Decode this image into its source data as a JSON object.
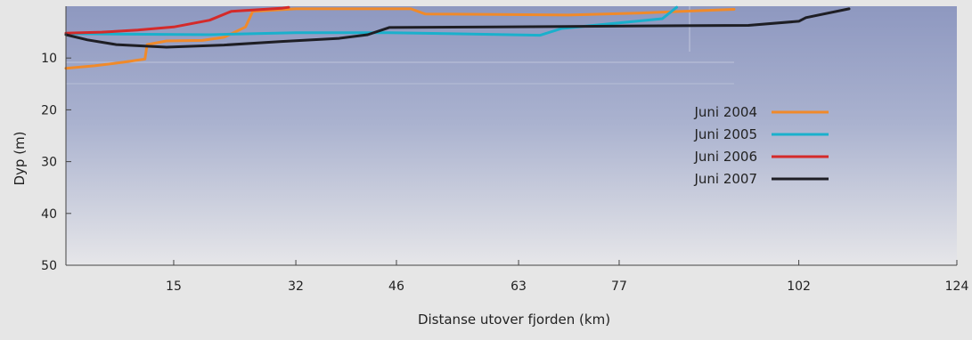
{
  "chart_data": {
    "type": "line",
    "xlabel": "Distanse utover fjorden (km)",
    "ylabel": "Dyp (m)",
    "x_ticks": [
      15,
      32,
      46,
      63,
      77,
      102,
      124
    ],
    "y_ticks": [
      10,
      20,
      30,
      40,
      50
    ],
    "xlim": [
      0,
      124
    ],
    "ylim": [
      0,
      50
    ],
    "y_inverted": true,
    "legend_position": "right-center",
    "background": "gradient blue-grey fading to light grey",
    "series": [
      {
        "name": "Juni 2004",
        "color": "#f08a2a",
        "x": [
          0,
          4,
          8,
          11,
          11.3,
          14,
          19,
          22,
          25,
          26,
          32,
          48,
          50,
          60,
          70,
          80,
          93
        ],
        "y": [
          12,
          11.5,
          10.8,
          10.2,
          7.4,
          6.7,
          6.6,
          6,
          4,
          1,
          0.5,
          0.5,
          1.5,
          1.6,
          1.7,
          1.3,
          0.6
        ]
      },
      {
        "name": "Juni 2005",
        "color": "#1ab0cc",
        "x": [
          0,
          20,
          32,
          45,
          66,
          69,
          83,
          85
        ],
        "y": [
          5.3,
          5.5,
          5.1,
          5.1,
          5.6,
          4.3,
          2.4,
          0.2
        ]
      },
      {
        "name": "Juni 2006",
        "color": "#d42a2a",
        "x": [
          0,
          5,
          10,
          15,
          20,
          23,
          30,
          31
        ],
        "y": [
          5.2,
          5,
          4.6,
          4,
          2.7,
          1,
          0.4,
          0.2
        ]
      },
      {
        "name": "Juni 2007",
        "color": "#1e1e24",
        "x": [
          0,
          3,
          7,
          14,
          22,
          30,
          38,
          42,
          45,
          60,
          80,
          95,
          102,
          103,
          109
        ],
        "y": [
          5.5,
          6.5,
          7.4,
          7.9,
          7.5,
          6.8,
          6.2,
          5.5,
          4.1,
          4,
          3.8,
          3.7,
          2.9,
          2.2,
          0.5
        ]
      }
    ]
  }
}
